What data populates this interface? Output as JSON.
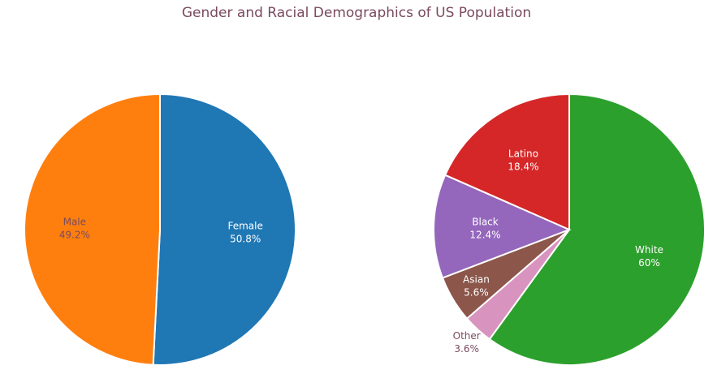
{
  "chart_data": {
    "title": "Gender and Racial Demographics of US Population",
    "colors": {
      "title": "#7a4a5e",
      "outside_label": "#7a4a5e",
      "slice_border": "#ffffff"
    },
    "charts": [
      {
        "type": "pie",
        "direction": "clockwise",
        "start": "top",
        "slices": [
          {
            "label": "Female",
            "value": 50.8,
            "text": "50.8%",
            "color": "#1f77b4",
            "label_color": "#ffffff"
          },
          {
            "label": "Male",
            "value": 49.2,
            "text": "49.2%",
            "color": "#ff7f0e",
            "label_color": "#7a4a5e"
          }
        ]
      },
      {
        "type": "pie",
        "direction": "clockwise",
        "start": "top",
        "slices": [
          {
            "label": "White",
            "value": 60,
            "text": "60%",
            "color": "#2ca02c",
            "label_color": "#ffffff"
          },
          {
            "label": "Other",
            "value": 3.6,
            "text": "3.6%",
            "color": "#d993bf",
            "label_color": "#7a4a5e",
            "outside": true
          },
          {
            "label": "Asian",
            "value": 5.6,
            "text": "5.6%",
            "color": "#8c564b",
            "label_color": "#ffffff"
          },
          {
            "label": "Black",
            "value": 12.4,
            "text": "12.4%",
            "color": "#9467bd",
            "label_color": "#ffffff"
          },
          {
            "label": "Latino",
            "value": 18.4,
            "text": "18.4%",
            "color": "#d62728",
            "label_color": "#ffffff"
          }
        ]
      }
    ]
  }
}
